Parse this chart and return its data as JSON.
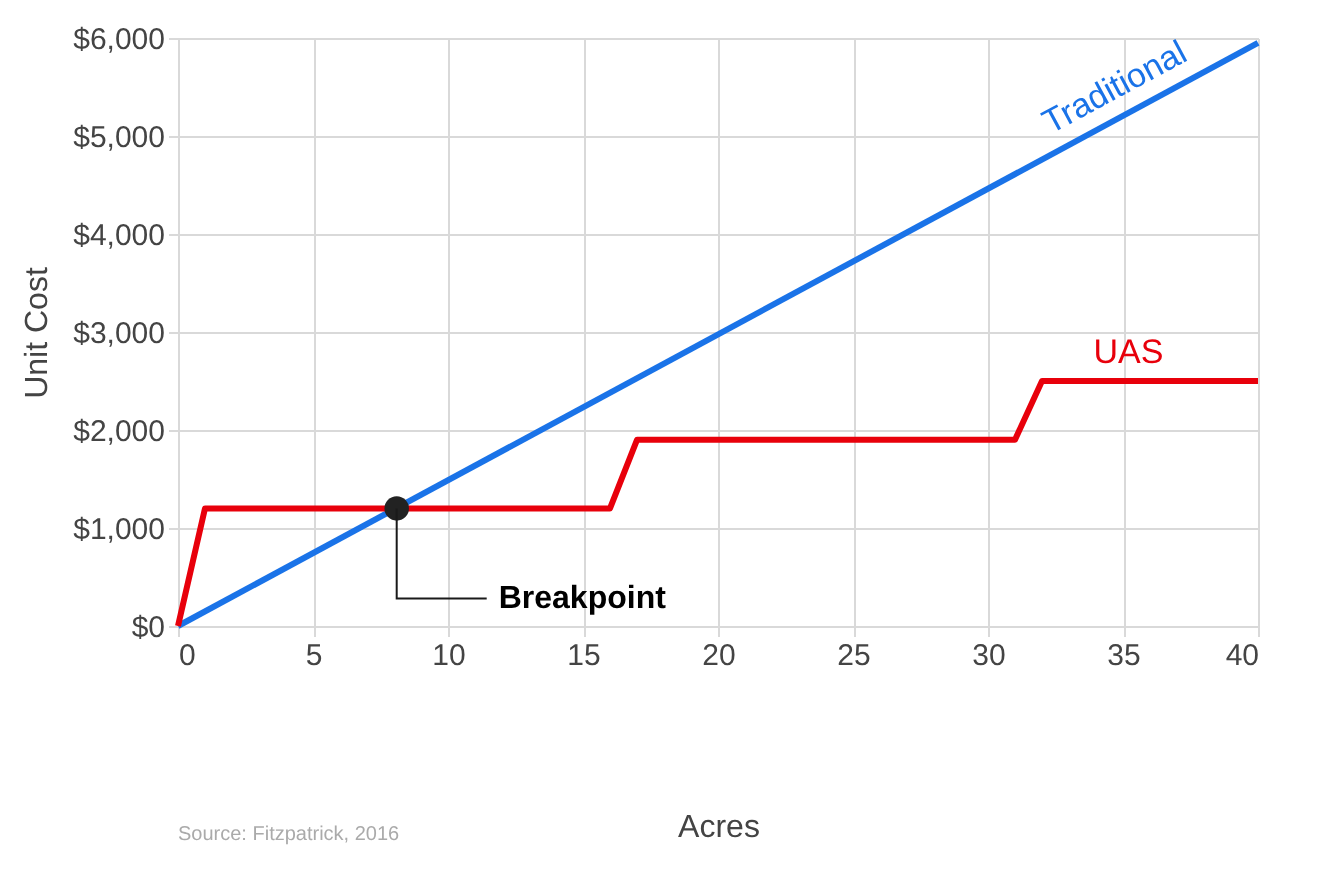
{
  "chart_data": {
    "type": "line",
    "xlabel": "Acres",
    "ylabel": "Unit Cost",
    "xlim": [
      0,
      40
    ],
    "xticks": [
      0,
      5,
      10,
      15,
      20,
      25,
      30,
      35,
      40
    ],
    "ylim": [
      0,
      6000
    ],
    "yticks": [
      {
        "value": 0,
        "label": "$0"
      },
      {
        "value": 1000,
        "label": "$1,000"
      },
      {
        "value": 2000,
        "label": "$2,000"
      },
      {
        "value": 3000,
        "label": "$3,000"
      },
      {
        "value": 4000,
        "label": "$4,000"
      },
      {
        "value": 5000,
        "label": "$5,000"
      },
      {
        "value": 6000,
        "label": "$6,000"
      }
    ],
    "grid": true,
    "legend": false,
    "marker": "none",
    "line_style": "solid",
    "series": [
      {
        "name": "Traditional",
        "color": "#1a73e8",
        "x": [
          0,
          40
        ],
        "values": [
          0,
          5950
        ]
      },
      {
        "name": "UAS",
        "color": "#e8000b",
        "x": [
          0,
          1,
          16,
          17,
          31,
          32,
          40
        ],
        "values": [
          0,
          1200,
          1200,
          1900,
          1900,
          2500,
          2500
        ]
      },
      {
        "type": "scatter",
        "color": "#222222",
        "marker": "circle",
        "x": [
          8.1
        ],
        "values": [
          1200
        ]
      }
    ],
    "annotations": [
      {
        "text": "Breakpoint",
        "x": 8.1,
        "y": 1200
      },
      "Source: Fitzpatrick, 2016"
    ]
  }
}
